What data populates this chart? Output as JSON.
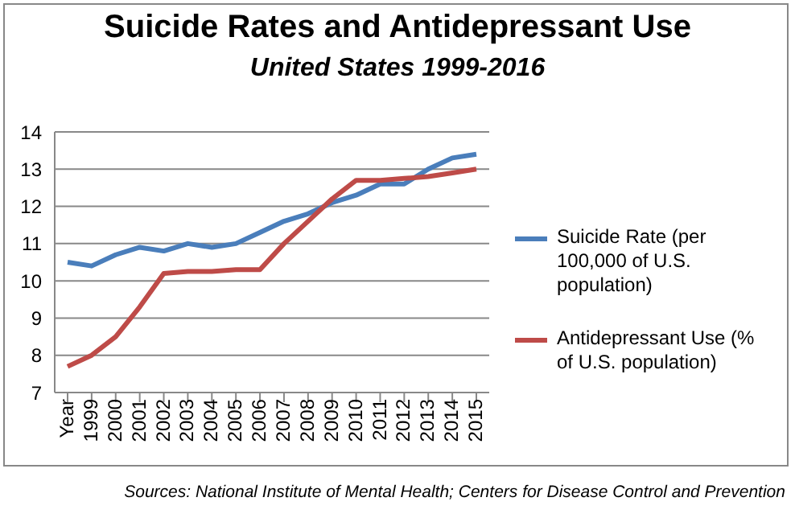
{
  "chart_data": {
    "type": "line",
    "title": "Suicide Rates and Antidepressant Use",
    "subtitle": "United States 1999-2016",
    "categories": [
      "Year",
      "1999",
      "2000",
      "2001",
      "2002",
      "2003",
      "2004",
      "2005",
      "2006",
      "2007",
      "2008",
      "2009",
      "2010",
      "2011",
      "2012",
      "2013",
      "2014",
      "2015"
    ],
    "series": [
      {
        "name": "Suicide Rate (per 100,000 of U.S. population)",
        "color": "#4a7ebb",
        "values": [
          10.5,
          10.4,
          10.7,
          10.9,
          10.8,
          11.0,
          10.9,
          11.0,
          11.3,
          11.6,
          11.8,
          12.1,
          12.3,
          12.6,
          12.6,
          13.0,
          13.3,
          13.4
        ]
      },
      {
        "name": "Antidepressant Use (% of U.S. population)",
        "color": "#be4b48",
        "values": [
          7.7,
          8.0,
          8.5,
          9.3,
          10.2,
          10.25,
          10.25,
          10.3,
          10.3,
          11.0,
          11.6,
          12.2,
          12.7,
          12.7,
          12.75,
          12.8,
          12.9,
          13.0
        ]
      }
    ],
    "ylim": [
      7,
      14
    ],
    "yticks": [
      7,
      8,
      9,
      10,
      11,
      12,
      13,
      14
    ],
    "grid": "y",
    "legend": "right",
    "marker": "none",
    "line_style": "solid",
    "annotations": [
      "Sources: National Institute of Mental Health; Centers for Disease Control and Prevention"
    ]
  }
}
